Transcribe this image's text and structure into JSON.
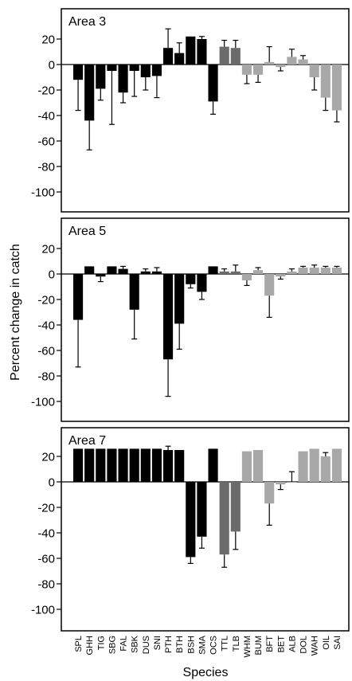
{
  "figure": {
    "ylabel": "Percent change in catch",
    "xlabel": "Species"
  },
  "chart_data": {
    "type": "bar",
    "categories": [
      "SPL",
      "GHH",
      "TIG",
      "SBG",
      "FAL",
      "SBK",
      "DUS",
      "SNI",
      "PTH",
      "BTH",
      "BSH",
      "SMA",
      "OCS",
      "TTL",
      "TLB",
      "WHM",
      "BUM",
      "BFT",
      "BET",
      "ALB",
      "DOL",
      "WAH",
      "OIL",
      "SAI"
    ],
    "group_colors": [
      "#000000",
      "#000000",
      "#000000",
      "#000000",
      "#000000",
      "#000000",
      "#000000",
      "#000000",
      "#000000",
      "#000000",
      "#000000",
      "#000000",
      "#000000",
      "#6b6b6b",
      "#6b6b6b",
      "#a8a8a8",
      "#a8a8a8",
      "#a8a8a8",
      "#a8a8a8",
      "#a8a8a8",
      "#a8a8a8",
      "#a8a8a8",
      "#a8a8a8",
      "#a8a8a8"
    ],
    "ylim": [
      -120,
      30
    ],
    "yticks": [
      "20",
      "0",
      "-20",
      "-40",
      "-60",
      "-80",
      "-100"
    ],
    "grid": false,
    "panels": [
      {
        "title": "Area 3",
        "values": [
          -12,
          -44,
          -19,
          -5,
          -22,
          -5,
          -10,
          -9,
          13,
          9,
          22,
          20,
          -29,
          14,
          13,
          -8,
          -8,
          2,
          -2,
          6,
          4,
          -10,
          -26,
          -36
        ],
        "errors": [
          24,
          23,
          9,
          42,
          8,
          20,
          10,
          17,
          15,
          8,
          0,
          2,
          10,
          5,
          6,
          7,
          6,
          12,
          3,
          6,
          3,
          10,
          10,
          9
        ]
      },
      {
        "title": "Area 5",
        "values": [
          -36,
          6,
          -2,
          6,
          4,
          -28,
          2,
          2,
          -67,
          -39,
          -8,
          -14,
          6,
          2,
          2,
          -5,
          3,
          -17,
          -2,
          2,
          5,
          5,
          5,
          5
        ],
        "errors": [
          37,
          0,
          4,
          0,
          2,
          23,
          2,
          3,
          29,
          20,
          3,
          6,
          0,
          2,
          5,
          4,
          2,
          17,
          2,
          2,
          1,
          2,
          1,
          1
        ],
        "ylabel": "Percent change in catch"
      },
      {
        "title": "Area 7",
        "values": [
          26,
          26,
          26,
          26,
          26,
          26,
          26,
          26,
          25,
          25,
          -59,
          -43,
          26,
          -57,
          -39,
          24,
          25,
          -17,
          -2,
          0,
          24,
          26,
          20,
          26
        ],
        "errors": [
          0,
          0,
          0,
          0,
          0,
          0,
          0,
          0,
          3,
          0,
          5,
          9,
          0,
          10,
          14,
          0,
          0,
          17,
          4,
          8,
          0,
          0,
          3,
          0
        ]
      }
    ],
    "xlabel": "Species"
  }
}
